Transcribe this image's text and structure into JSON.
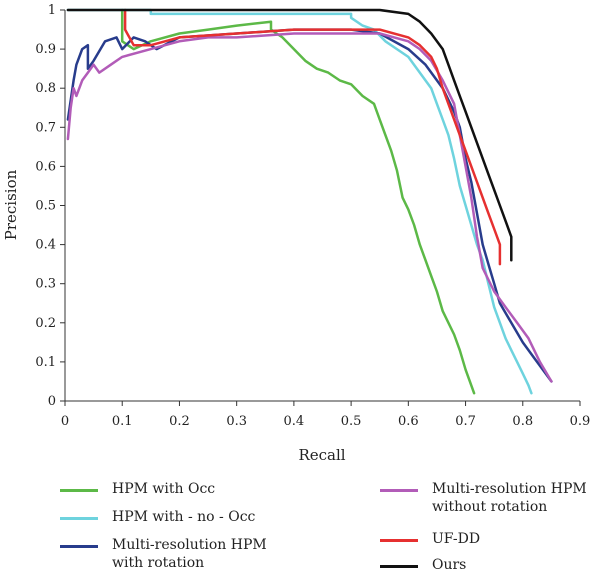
{
  "chart_data": {
    "type": "line",
    "title": "",
    "xlabel": "Recall",
    "ylabel": "Precision",
    "xlim": [
      0,
      0.9
    ],
    "ylim": [
      0,
      1
    ],
    "xticks": [
      "0",
      "0.1",
      "0.2",
      "0.3",
      "0.4",
      "0.5",
      "0.6",
      "0.7",
      "0.8",
      "0.9"
    ],
    "yticks": [
      "0",
      "0.1",
      "0.2",
      "0.3",
      "0.4",
      "0.5",
      "0.6",
      "0.7",
      "0.8",
      "0.9",
      "1"
    ],
    "legend_position": "bottom",
    "series": [
      {
        "name": "HPM with Occ",
        "color": "#5cb947",
        "points": [
          [
            0.1,
            1.0
          ],
          [
            0.1,
            0.92
          ],
          [
            0.12,
            0.9
          ],
          [
            0.15,
            0.92
          ],
          [
            0.2,
            0.94
          ],
          [
            0.25,
            0.95
          ],
          [
            0.3,
            0.96
          ],
          [
            0.36,
            0.97
          ],
          [
            0.36,
            0.95
          ],
          [
            0.38,
            0.93
          ],
          [
            0.4,
            0.9
          ],
          [
            0.42,
            0.87
          ],
          [
            0.44,
            0.85
          ],
          [
            0.46,
            0.84
          ],
          [
            0.48,
            0.82
          ],
          [
            0.5,
            0.81
          ],
          [
            0.52,
            0.78
          ],
          [
            0.54,
            0.76
          ],
          [
            0.55,
            0.72
          ],
          [
            0.56,
            0.68
          ],
          [
            0.57,
            0.64
          ],
          [
            0.58,
            0.59
          ],
          [
            0.59,
            0.52
          ],
          [
            0.6,
            0.49
          ],
          [
            0.61,
            0.45
          ],
          [
            0.62,
            0.4
          ],
          [
            0.63,
            0.36
          ],
          [
            0.64,
            0.32
          ],
          [
            0.65,
            0.28
          ],
          [
            0.66,
            0.23
          ],
          [
            0.68,
            0.17
          ],
          [
            0.69,
            0.13
          ],
          [
            0.7,
            0.08
          ],
          [
            0.71,
            0.04
          ],
          [
            0.715,
            0.02
          ]
        ]
      },
      {
        "name": "HPM with - no - Occ",
        "color": "#6ed3de",
        "points": [
          [
            0.005,
            1.0
          ],
          [
            0.15,
            1.0
          ],
          [
            0.15,
            0.99
          ],
          [
            0.3,
            0.99
          ],
          [
            0.5,
            0.99
          ],
          [
            0.5,
            0.98
          ],
          [
            0.52,
            0.96
          ],
          [
            0.54,
            0.95
          ],
          [
            0.56,
            0.92
          ],
          [
            0.58,
            0.9
          ],
          [
            0.6,
            0.88
          ],
          [
            0.62,
            0.84
          ],
          [
            0.64,
            0.8
          ],
          [
            0.65,
            0.76
          ],
          [
            0.66,
            0.72
          ],
          [
            0.67,
            0.68
          ],
          [
            0.68,
            0.62
          ],
          [
            0.69,
            0.55
          ],
          [
            0.7,
            0.5
          ],
          [
            0.71,
            0.45
          ],
          [
            0.72,
            0.4
          ],
          [
            0.73,
            0.36
          ],
          [
            0.74,
            0.3
          ],
          [
            0.75,
            0.24
          ],
          [
            0.76,
            0.2
          ],
          [
            0.77,
            0.16
          ],
          [
            0.78,
            0.13
          ],
          [
            0.79,
            0.1
          ],
          [
            0.8,
            0.07
          ],
          [
            0.81,
            0.04
          ],
          [
            0.815,
            0.02
          ]
        ]
      },
      {
        "name": "Multi-resolution HPM with rotation",
        "color": "#283c8c",
        "points": [
          [
            0.005,
            0.72
          ],
          [
            0.015,
            0.82
          ],
          [
            0.02,
            0.86
          ],
          [
            0.03,
            0.9
          ],
          [
            0.04,
            0.91
          ],
          [
            0.04,
            0.85
          ],
          [
            0.05,
            0.87
          ],
          [
            0.07,
            0.92
          ],
          [
            0.09,
            0.93
          ],
          [
            0.1,
            0.9
          ],
          [
            0.12,
            0.93
          ],
          [
            0.14,
            0.92
          ],
          [
            0.16,
            0.9
          ],
          [
            0.2,
            0.93
          ],
          [
            0.3,
            0.94
          ],
          [
            0.4,
            0.95
          ],
          [
            0.5,
            0.95
          ],
          [
            0.55,
            0.94
          ],
          [
            0.6,
            0.9
          ],
          [
            0.63,
            0.86
          ],
          [
            0.66,
            0.8
          ],
          [
            0.68,
            0.74
          ],
          [
            0.69,
            0.7
          ],
          [
            0.7,
            0.62
          ],
          [
            0.71,
            0.56
          ],
          [
            0.72,
            0.48
          ],
          [
            0.73,
            0.4
          ],
          [
            0.74,
            0.35
          ],
          [
            0.75,
            0.3
          ],
          [
            0.76,
            0.25
          ],
          [
            0.78,
            0.2
          ],
          [
            0.8,
            0.15
          ],
          [
            0.82,
            0.11
          ],
          [
            0.84,
            0.07
          ],
          [
            0.85,
            0.05
          ]
        ]
      },
      {
        "name": "Multi-resolution HPM\nwithout rotation",
        "color": "#b25cb8",
        "points": [
          [
            0.005,
            0.67
          ],
          [
            0.01,
            0.75
          ],
          [
            0.015,
            0.8
          ],
          [
            0.02,
            0.78
          ],
          [
            0.03,
            0.82
          ],
          [
            0.04,
            0.84
          ],
          [
            0.05,
            0.86
          ],
          [
            0.06,
            0.84
          ],
          [
            0.08,
            0.86
          ],
          [
            0.1,
            0.88
          ],
          [
            0.15,
            0.9
          ],
          [
            0.2,
            0.92
          ],
          [
            0.25,
            0.93
          ],
          [
            0.3,
            0.93
          ],
          [
            0.4,
            0.94
          ],
          [
            0.5,
            0.94
          ],
          [
            0.55,
            0.94
          ],
          [
            0.6,
            0.92
          ],
          [
            0.62,
            0.9
          ],
          [
            0.64,
            0.87
          ],
          [
            0.66,
            0.82
          ],
          [
            0.68,
            0.76
          ],
          [
            0.69,
            0.68
          ],
          [
            0.7,
            0.6
          ],
          [
            0.71,
            0.52
          ],
          [
            0.72,
            0.42
          ],
          [
            0.73,
            0.34
          ],
          [
            0.75,
            0.28
          ],
          [
            0.77,
            0.24
          ],
          [
            0.79,
            0.2
          ],
          [
            0.81,
            0.16
          ],
          [
            0.83,
            0.1
          ],
          [
            0.85,
            0.05
          ]
        ]
      },
      {
        "name": "UF-DD",
        "color": "#e63030",
        "points": [
          [
            0.105,
            1.0
          ],
          [
            0.105,
            0.95
          ],
          [
            0.12,
            0.91
          ],
          [
            0.15,
            0.91
          ],
          [
            0.2,
            0.93
          ],
          [
            0.3,
            0.94
          ],
          [
            0.4,
            0.95
          ],
          [
            0.5,
            0.95
          ],
          [
            0.55,
            0.95
          ],
          [
            0.6,
            0.93
          ],
          [
            0.62,
            0.91
          ],
          [
            0.64,
            0.88
          ],
          [
            0.65,
            0.85
          ],
          [
            0.66,
            0.8
          ],
          [
            0.67,
            0.76
          ],
          [
            0.68,
            0.72
          ],
          [
            0.69,
            0.68
          ],
          [
            0.7,
            0.64
          ],
          [
            0.71,
            0.6
          ],
          [
            0.72,
            0.56
          ],
          [
            0.73,
            0.52
          ],
          [
            0.74,
            0.48
          ],
          [
            0.75,
            0.44
          ],
          [
            0.76,
            0.4
          ],
          [
            0.76,
            0.35
          ]
        ]
      },
      {
        "name": "Ours",
        "color": "#111111",
        "points": [
          [
            0.005,
            1.0
          ],
          [
            0.3,
            1.0
          ],
          [
            0.55,
            1.0
          ],
          [
            0.6,
            0.99
          ],
          [
            0.62,
            0.97
          ],
          [
            0.64,
            0.94
          ],
          [
            0.66,
            0.9
          ],
          [
            0.67,
            0.86
          ],
          [
            0.68,
            0.82
          ],
          [
            0.69,
            0.78
          ],
          [
            0.7,
            0.74
          ],
          [
            0.71,
            0.7
          ],
          [
            0.72,
            0.66
          ],
          [
            0.73,
            0.62
          ],
          [
            0.74,
            0.58
          ],
          [
            0.75,
            0.54
          ],
          [
            0.76,
            0.5
          ],
          [
            0.77,
            0.46
          ],
          [
            0.78,
            0.42
          ],
          [
            0.78,
            0.36
          ]
        ]
      }
    ]
  }
}
